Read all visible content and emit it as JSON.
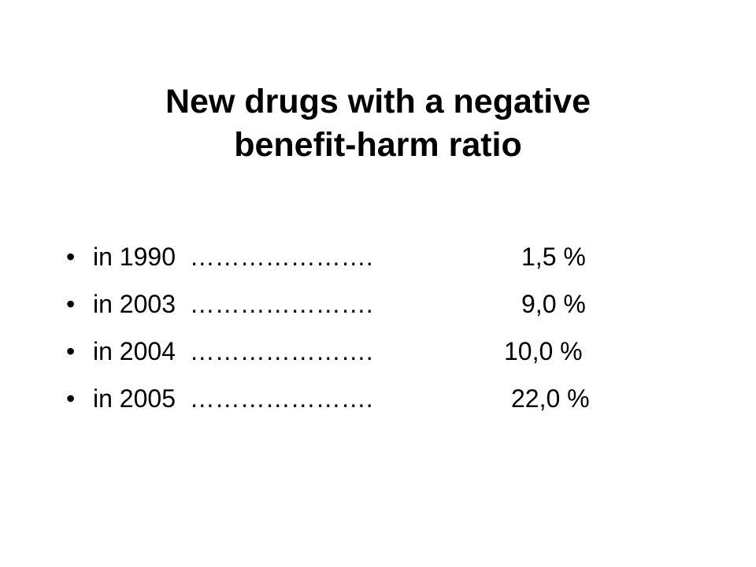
{
  "slide": {
    "title_line1": "New drugs with a negative",
    "title_line2": "benefit-harm ratio",
    "bullet_glyph": "•",
    "items": [
      {
        "label": "in 1990  ………………….",
        "value": "1,5 %"
      },
      {
        "label": "in 2003  ………………….",
        "value": "9,0 %"
      },
      {
        "label": "in 2004  ………………….",
        "value": "10,0 %"
      },
      {
        "label": "in 2005  ………………….",
        "value": "22,0 %"
      }
    ]
  }
}
